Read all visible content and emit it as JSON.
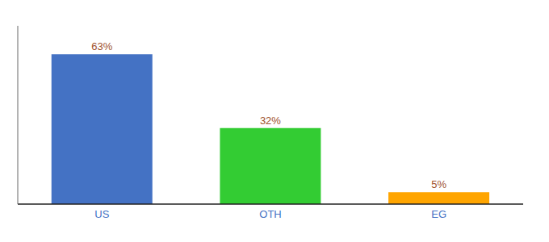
{
  "chart_data": {
    "type": "bar",
    "categories": [
      "US",
      "OTH",
      "EG"
    ],
    "values": [
      63,
      32,
      5
    ],
    "value_labels": [
      "63%",
      "32%",
      "5%"
    ],
    "colors": [
      "#4472C4",
      "#33CC33",
      "#FFA500"
    ],
    "ylim": [
      0,
      75
    ],
    "data_labels": true,
    "tick_labels": "x"
  }
}
